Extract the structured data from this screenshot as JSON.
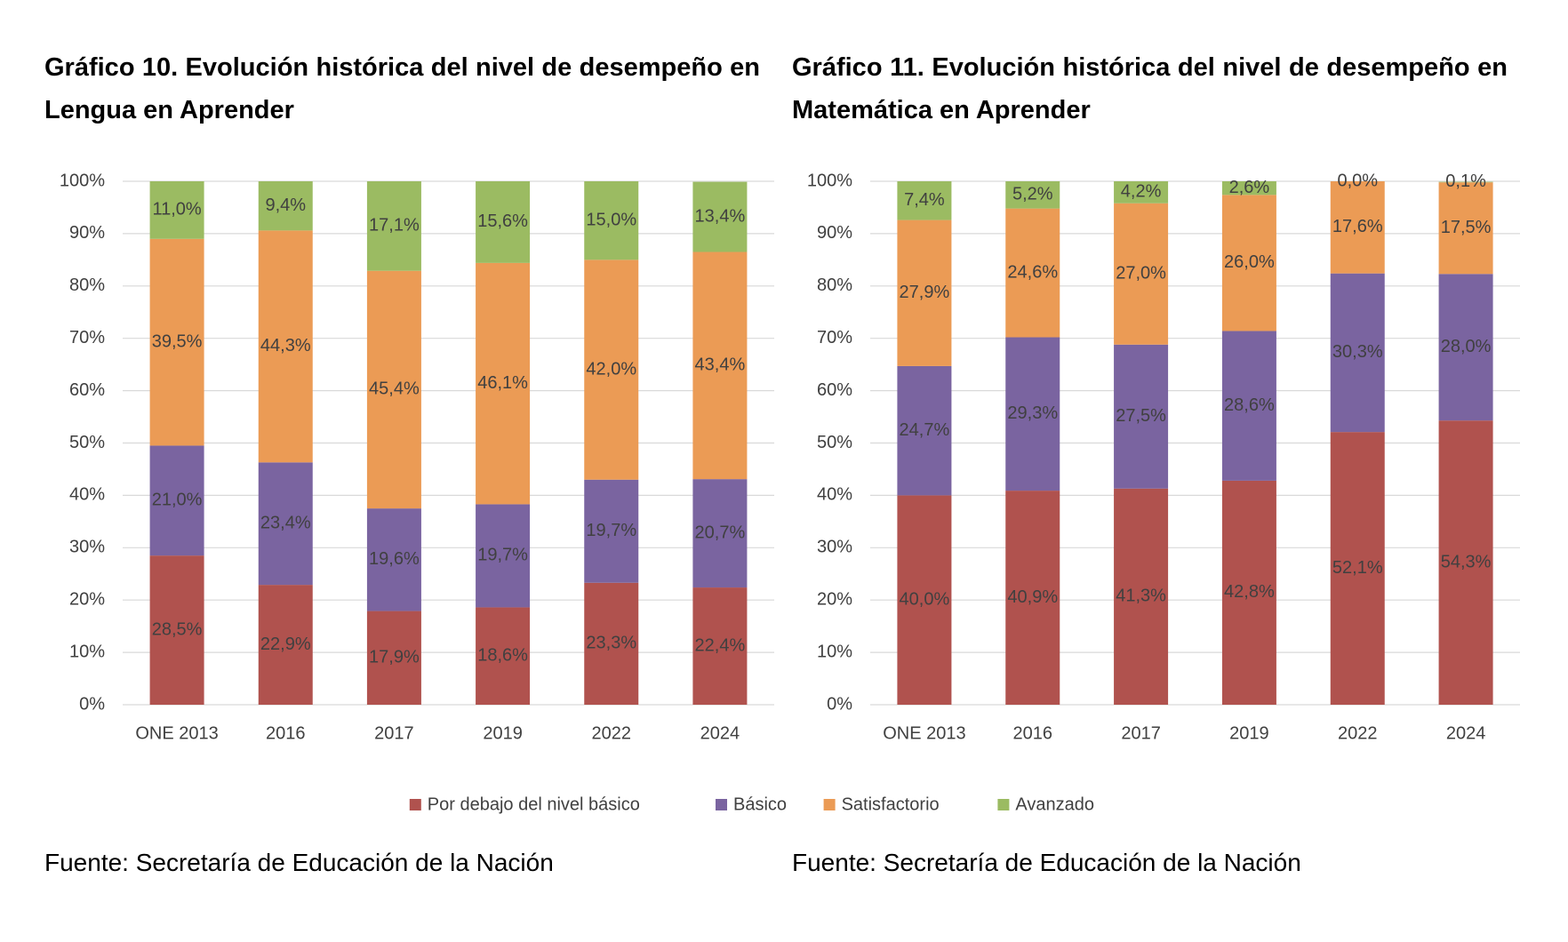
{
  "chart_data": [
    {
      "type": "stacked_bar",
      "title": "Gráfico 10. Evolución histórica del nivel de desempeño en Lengua en Aprender",
      "source": "Fuente: Secretaría de Educación de la Nación",
      "categories": [
        "ONE 2013",
        "2016",
        "2017",
        "2019",
        "2022",
        "2024"
      ],
      "ylim": [
        0,
        100
      ],
      "yticks": [
        {
          "value": 0,
          "label": "0%"
        },
        {
          "value": 10,
          "label": "10%"
        },
        {
          "value": 20,
          "label": "20%"
        },
        {
          "value": 30,
          "label": "30%"
        },
        {
          "value": 40,
          "label": "40%"
        },
        {
          "value": 50,
          "label": "50%"
        },
        {
          "value": 60,
          "label": "60%"
        },
        {
          "value": 70,
          "label": "70%"
        },
        {
          "value": 80,
          "label": "80%"
        },
        {
          "value": 90,
          "label": "90%"
        },
        {
          "value": 100,
          "label": "100%"
        }
      ],
      "grid": true,
      "series": [
        {
          "name": "Por debajo del nivel básico",
          "color": "#b0524e",
          "values": [
            28.5,
            22.9,
            17.9,
            18.6,
            23.3,
            22.4
          ],
          "value_labels": [
            "28,5%",
            "22,9%",
            "17,9%",
            "18,6%",
            "23,3%",
            "22,4%"
          ]
        },
        {
          "name": "Básico",
          "color": "#7a64a0",
          "values": [
            21.0,
            23.4,
            19.6,
            19.7,
            19.7,
            20.7
          ],
          "value_labels": [
            "21,0%",
            "23,4%",
            "19,6%",
            "19,7%",
            "19,7%",
            "20,7%"
          ]
        },
        {
          "name": "Satisfactorio",
          "color": "#eb9b55",
          "values": [
            39.5,
            44.3,
            45.4,
            46.1,
            42.0,
            43.4
          ],
          "value_labels": [
            "39,5%",
            "44,3%",
            "45,4%",
            "46,1%",
            "42,0%",
            "43,4%"
          ]
        },
        {
          "name": "Avanzado",
          "color": "#9bbb62",
          "values": [
            11.0,
            9.4,
            17.1,
            15.6,
            15.0,
            13.4
          ],
          "value_labels": [
            "11,0%",
            "9,4%",
            "17,1%",
            "15,6%",
            "15,0%",
            "13,4%"
          ]
        }
      ]
    },
    {
      "type": "stacked_bar",
      "title": "Gráfico 11. Evolución histórica del nivel de desempeño en Matemática en Aprender",
      "source": "Fuente: Secretaría de Educación de la Nación",
      "categories": [
        "ONE 2013",
        "2016",
        "2017",
        "2019",
        "2022",
        "2024"
      ],
      "ylim": [
        0,
        100
      ],
      "yticks": [
        {
          "value": 0,
          "label": "0%"
        },
        {
          "value": 10,
          "label": "10%"
        },
        {
          "value": 20,
          "label": "20%"
        },
        {
          "value": 30,
          "label": "30%"
        },
        {
          "value": 40,
          "label": "40%"
        },
        {
          "value": 50,
          "label": "50%"
        },
        {
          "value": 60,
          "label": "60%"
        },
        {
          "value": 70,
          "label": "70%"
        },
        {
          "value": 80,
          "label": "80%"
        },
        {
          "value": 90,
          "label": "90%"
        },
        {
          "value": 100,
          "label": "100%"
        }
      ],
      "grid": true,
      "series": [
        {
          "color": "#b0524e",
          "values": [
            40.0,
            40.9,
            41.3,
            42.8,
            52.1,
            54.3
          ],
          "value_labels": [
            "40,0%",
            "40,9%",
            "41,3%",
            "42,8%",
            "52,1%",
            "54,3%"
          ]
        },
        {
          "color": "#7a64a0",
          "values": [
            24.7,
            29.3,
            27.5,
            28.6,
            30.3,
            28.0
          ],
          "value_labels": [
            "24,7%",
            "29,3%",
            "27,5%",
            "28,6%",
            "30,3%",
            "28,0%"
          ]
        },
        {
          "color": "#eb9b55",
          "values": [
            27.9,
            24.6,
            27.0,
            26.0,
            17.6,
            17.5
          ],
          "value_labels": [
            "27,9%",
            "24,6%",
            "27,0%",
            "26,0%",
            "17,6%",
            "17,5%"
          ]
        },
        {
          "color": "#9bbb62",
          "values": [
            7.4,
            5.2,
            4.2,
            2.6,
            0.0,
            0.1
          ],
          "value_labels": [
            "7,4%",
            "5,2%",
            "4,2%",
            "2,6%",
            "0,0%",
            "0,1%"
          ]
        }
      ]
    }
  ]
}
